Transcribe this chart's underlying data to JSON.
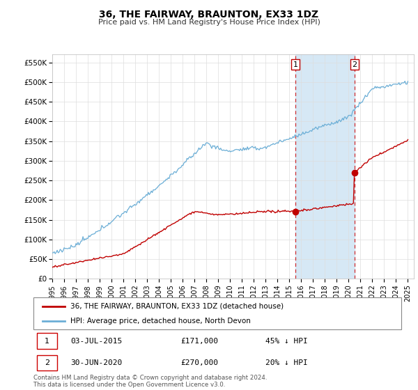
{
  "title": "36, THE FAIRWAY, BRAUNTON, EX33 1DZ",
  "subtitle": "Price paid vs. HM Land Registry's House Price Index (HPI)",
  "ylim": [
    0,
    570000
  ],
  "yticks": [
    0,
    50000,
    100000,
    150000,
    200000,
    250000,
    300000,
    350000,
    400000,
    450000,
    500000,
    550000
  ],
  "ytick_labels": [
    "£0",
    "£50K",
    "£100K",
    "£150K",
    "£200K",
    "£250K",
    "£300K",
    "£350K",
    "£400K",
    "£450K",
    "£500K",
    "£550K"
  ],
  "hpi_color": "#6baed6",
  "price_color": "#c00000",
  "vline_color": "#cc0000",
  "shade_color": "#d6e8f5",
  "transaction_1_date": 2015.5,
  "transaction_1_price": 171000,
  "transaction_2_date": 2020.5,
  "transaction_2_price": 270000,
  "legend_line1": "36, THE FAIRWAY, BRAUNTON, EX33 1DZ (detached house)",
  "legend_line2": "HPI: Average price, detached house, North Devon",
  "footer": "Contains HM Land Registry data © Crown copyright and database right 2024.\nThis data is licensed under the Open Government Licence v3.0.",
  "grid_color": "#dddddd",
  "xlim_start": 1995,
  "xlim_end": 2025.5
}
